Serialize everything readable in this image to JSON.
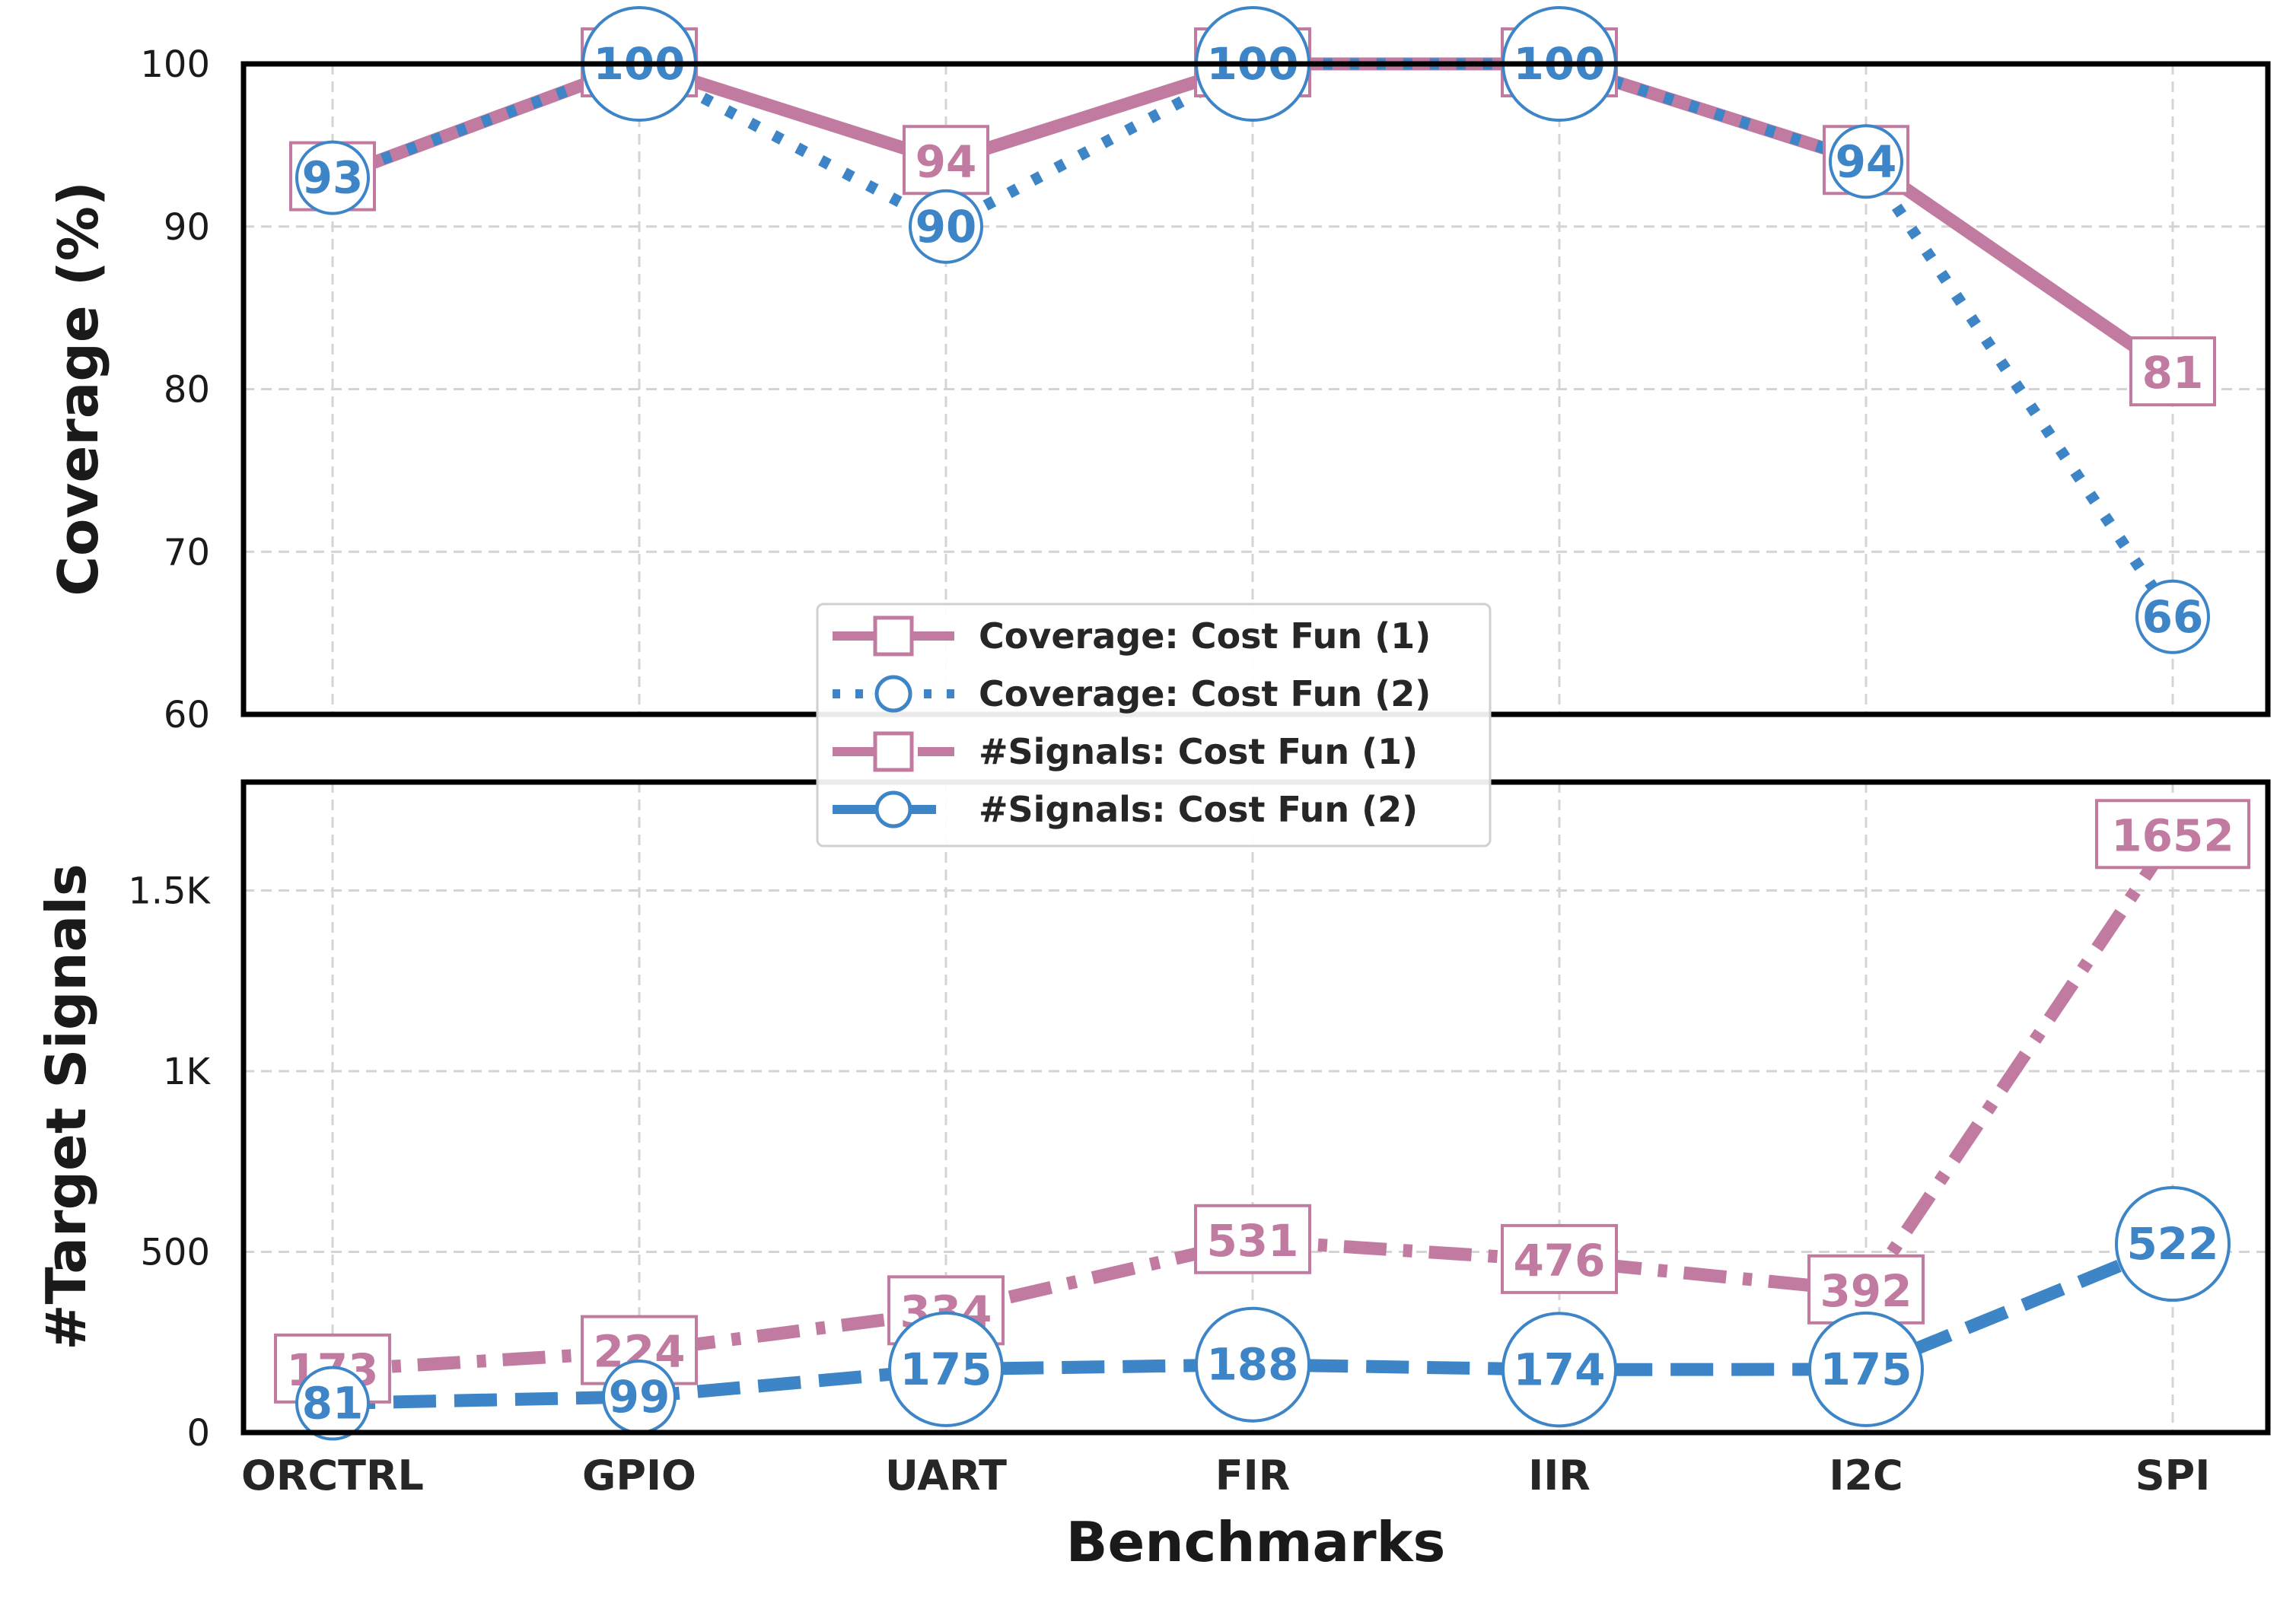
{
  "chart_data": [
    {
      "type": "line",
      "panel": "top",
      "ylabel": "Coverage (%)",
      "ylim": [
        60,
        100
      ],
      "yticks": [
        60,
        70,
        80,
        90,
        100
      ],
      "ytick_labels": [
        "60",
        "70",
        "80",
        "90",
        "100"
      ],
      "categories": [
        "ORCTRL",
        "GPIO",
        "UART",
        "FIR",
        "IIR",
        "I2C",
        "SPI"
      ],
      "grid": true,
      "series": [
        {
          "name": "Coverage: Cost Fun (1)",
          "values": [
            93,
            100,
            94,
            100,
            100,
            94,
            81
          ],
          "color": "#c27ba0",
          "style": "solid",
          "marker": "square"
        },
        {
          "name": "Coverage: Cost Fun (2)",
          "values": [
            93,
            100,
            90,
            100,
            100,
            94,
            66
          ],
          "color": "#3d85c6",
          "style": "dotted",
          "marker": "circle"
        }
      ]
    },
    {
      "type": "line",
      "panel": "bottom",
      "ylabel": "#Target Signals",
      "xlabel": "Benchmarks",
      "ylim": [
        0,
        1800
      ],
      "yticks": [
        0,
        500,
        1000,
        1500
      ],
      "ytick_labels": [
        "0",
        "500",
        "1K",
        "1.5K"
      ],
      "categories": [
        "ORCTRL",
        "GPIO",
        "UART",
        "FIR",
        "IIR",
        "I2C",
        "SPI"
      ],
      "grid": true,
      "series": [
        {
          "name": "#Signals: Cost Fun (1)",
          "values": [
            173,
            224,
            334,
            531,
            476,
            392,
            1652
          ],
          "color": "#c27ba0",
          "style": "dashdot",
          "marker": "square"
        },
        {
          "name": "#Signals: Cost Fun (2)",
          "values": [
            81,
            99,
            175,
            188,
            174,
            175,
            522
          ],
          "color": "#3d85c6",
          "style": "dashed",
          "marker": "circle"
        }
      ]
    }
  ],
  "legend": {
    "placement": "center, between panels",
    "entries": [
      {
        "label": "Coverage: Cost Fun (1)",
        "color": "#c27ba0",
        "style": "solid",
        "marker": "square"
      },
      {
        "label": "Coverage: Cost Fun (2)",
        "color": "#3d85c6",
        "style": "dotted",
        "marker": "circle"
      },
      {
        "label": "#Signals: Cost Fun (1)",
        "color": "#c27ba0",
        "style": "dashdot",
        "marker": "square"
      },
      {
        "label": "#Signals: Cost Fun (2)",
        "color": "#3d85c6",
        "style": "dashed",
        "marker": "circle"
      }
    ]
  }
}
